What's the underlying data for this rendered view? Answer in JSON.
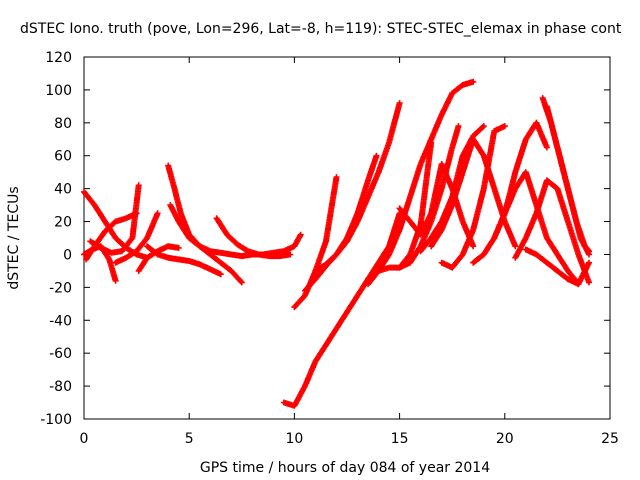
{
  "chart_data": {
    "type": "scatter",
    "title": "dSTEC Iono. truth (pove, Lon=296, Lat=-8, h=119): STEC-STEC_elemax in phase cont",
    "xlabel": "GPS time / hours of day 084 of year 2014",
    "ylabel": "dSTEC  / TECUs",
    "xlim": [
      0,
      25
    ],
    "ylim": [
      -100,
      120
    ],
    "xticks": [
      0,
      5,
      10,
      15,
      20,
      25
    ],
    "yticks": [
      -100,
      -80,
      -60,
      -40,
      -20,
      0,
      20,
      40,
      60,
      80,
      100,
      120
    ],
    "grid": false,
    "marker": "+",
    "color": "#ff0000",
    "series": [
      {
        "x": [
          0.0,
          0.5,
          1.0,
          1.5,
          2.0,
          2.5,
          3.0
        ],
        "y": [
          38,
          30,
          20,
          10,
          4,
          0,
          -2
        ]
      },
      {
        "x": [
          0.0,
          0.4,
          0.8,
          1.2,
          1.5
        ],
        "y": [
          0,
          3,
          5,
          -3,
          -16
        ]
      },
      {
        "x": [
          0.1,
          0.5,
          1.0,
          1.5,
          2.0,
          2.5
        ],
        "y": [
          -3,
          5,
          14,
          20,
          22,
          25
        ]
      },
      {
        "x": [
          0.3,
          0.8,
          1.3,
          1.8,
          2.3,
          2.6
        ],
        "y": [
          8,
          4,
          1,
          2,
          10,
          42
        ]
      },
      {
        "x": [
          1.5,
          2.0,
          2.5,
          3.0,
          3.5
        ],
        "y": [
          -5,
          -2,
          2,
          10,
          25
        ]
      },
      {
        "x": [
          2.6,
          3.0,
          3.5,
          4.0,
          4.5
        ],
        "y": [
          -10,
          -2,
          2,
          5,
          4
        ]
      },
      {
        "x": [
          4.0,
          4.3,
          4.6,
          5.0,
          5.5,
          6.0,
          6.5,
          7.0,
          7.5,
          8.0
        ],
        "y": [
          54,
          40,
          25,
          12,
          5,
          2,
          1,
          0,
          -1,
          0
        ]
      },
      {
        "x": [
          4.1,
          4.5,
          5.0,
          5.5,
          6.0,
          6.5,
          7.0,
          7.5
        ],
        "y": [
          30,
          20,
          10,
          5,
          0,
          -5,
          -10,
          -17
        ]
      },
      {
        "x": [
          3.0,
          3.5,
          4.0,
          4.5,
          5.0,
          5.5,
          6.0,
          6.5
        ],
        "y": [
          5,
          0,
          -2,
          -3,
          -4,
          -6,
          -9,
          -12
        ]
      },
      {
        "x": [
          6.3,
          6.8,
          7.3,
          7.8,
          8.3,
          8.8,
          9.3,
          9.8
        ],
        "y": [
          22,
          12,
          6,
          2,
          0,
          -1,
          -1,
          0
        ]
      },
      {
        "x": [
          8.0,
          8.5,
          9.0,
          9.5,
          10.0,
          10.3
        ],
        "y": [
          0,
          0,
          1,
          2,
          5,
          12
        ]
      },
      {
        "x": [
          10.0,
          10.5,
          11.0,
          11.5,
          12.0
        ],
        "y": [
          -32,
          -25,
          -10,
          8,
          47
        ]
      },
      {
        "x": [
          9.5,
          10.0,
          10.5,
          11.0,
          11.5,
          12.0,
          12.5,
          13.0,
          13.5,
          14.0,
          14.5,
          15.0
        ],
        "y": [
          -90,
          -92,
          -80,
          -65,
          -55,
          -45,
          -35,
          -25,
          -15,
          -5,
          5,
          25
        ]
      },
      {
        "x": [
          10.5,
          11.0,
          11.5,
          12.0,
          12.5,
          13.0,
          13.5,
          13.9
        ],
        "y": [
          -22,
          -15,
          -7,
          0,
          10,
          25,
          45,
          60
        ]
      },
      {
        "x": [
          11.0,
          11.5,
          12.0,
          12.5,
          13.0,
          13.5,
          14.0,
          14.5,
          15.0
        ],
        "y": [
          -10,
          -6,
          0,
          8,
          20,
          35,
          50,
          68,
          92
        ]
      },
      {
        "x": [
          13.5,
          14.0,
          14.5,
          15.0,
          15.5,
          16.0,
          16.5,
          17.0,
          17.5,
          18.0,
          18.5
        ],
        "y": [
          -18,
          -10,
          0,
          15,
          35,
          55,
          70,
          85,
          98,
          103,
          105
        ]
      },
      {
        "x": [
          13.5,
          14.0,
          14.5,
          15.0,
          15.5,
          16.0,
          16.5
        ],
        "y": [
          -15,
          -10,
          -8,
          -8,
          0,
          18,
          68
        ]
      },
      {
        "x": [
          15.0,
          15.5,
          16.0,
          16.5,
          17.0,
          17.5,
          17.8
        ],
        "y": [
          -8,
          -5,
          5,
          20,
          40,
          65,
          78
        ]
      },
      {
        "x": [
          15.0,
          15.5,
          16.0,
          16.5,
          17.0,
          17.5,
          18.0,
          18.5
        ],
        "y": [
          28,
          20,
          12,
          25,
          55,
          40,
          20,
          5
        ]
      },
      {
        "x": [
          16.0,
          16.5,
          17.0,
          17.5,
          18.0,
          18.5,
          19.0
        ],
        "y": [
          2,
          10,
          20,
          35,
          60,
          72,
          78
        ]
      },
      {
        "x": [
          16.5,
          17.0,
          17.5,
          18.0,
          18.5,
          19.0,
          19.5,
          20.0,
          20.5
        ],
        "y": [
          5,
          15,
          30,
          50,
          70,
          60,
          40,
          20,
          5
        ]
      },
      {
        "x": [
          17.0,
          17.5,
          18.0,
          18.5,
          19.0,
          19.5,
          20.0
        ],
        "y": [
          -5,
          -8,
          0,
          15,
          40,
          75,
          78
        ]
      },
      {
        "x": [
          18.5,
          19.0,
          19.5,
          20.0,
          20.5,
          21.0,
          21.5,
          22.0
        ],
        "y": [
          -5,
          0,
          10,
          25,
          50,
          70,
          80,
          65
        ]
      },
      {
        "x": [
          19.5,
          20.0,
          20.5,
          21.0,
          21.5,
          22.0,
          22.5,
          23.0,
          23.5
        ],
        "y": [
          10,
          25,
          40,
          50,
          30,
          10,
          0,
          -10,
          -18
        ]
      },
      {
        "x": [
          20.5,
          21.0,
          21.5,
          22.0,
          22.5,
          23.0,
          23.5,
          24.0
        ],
        "y": [
          -2,
          10,
          25,
          45,
          40,
          20,
          0,
          -17
        ]
      },
      {
        "x": [
          21.8,
          22.2,
          22.6,
          23.0,
          23.4,
          23.8,
          24.0
        ],
        "y": [
          95,
          80,
          60,
          40,
          20,
          5,
          2
        ]
      },
      {
        "x": [
          22.0,
          22.4,
          22.8,
          23.2,
          23.6,
          24.0
        ],
        "y": [
          90,
          70,
          50,
          30,
          10,
          0
        ]
      },
      {
        "x": [
          21.0,
          21.5,
          22.0,
          22.5,
          23.0,
          23.5,
          24.0
        ],
        "y": [
          3,
          0,
          -5,
          -10,
          -15,
          -18,
          -5
        ]
      }
    ]
  }
}
